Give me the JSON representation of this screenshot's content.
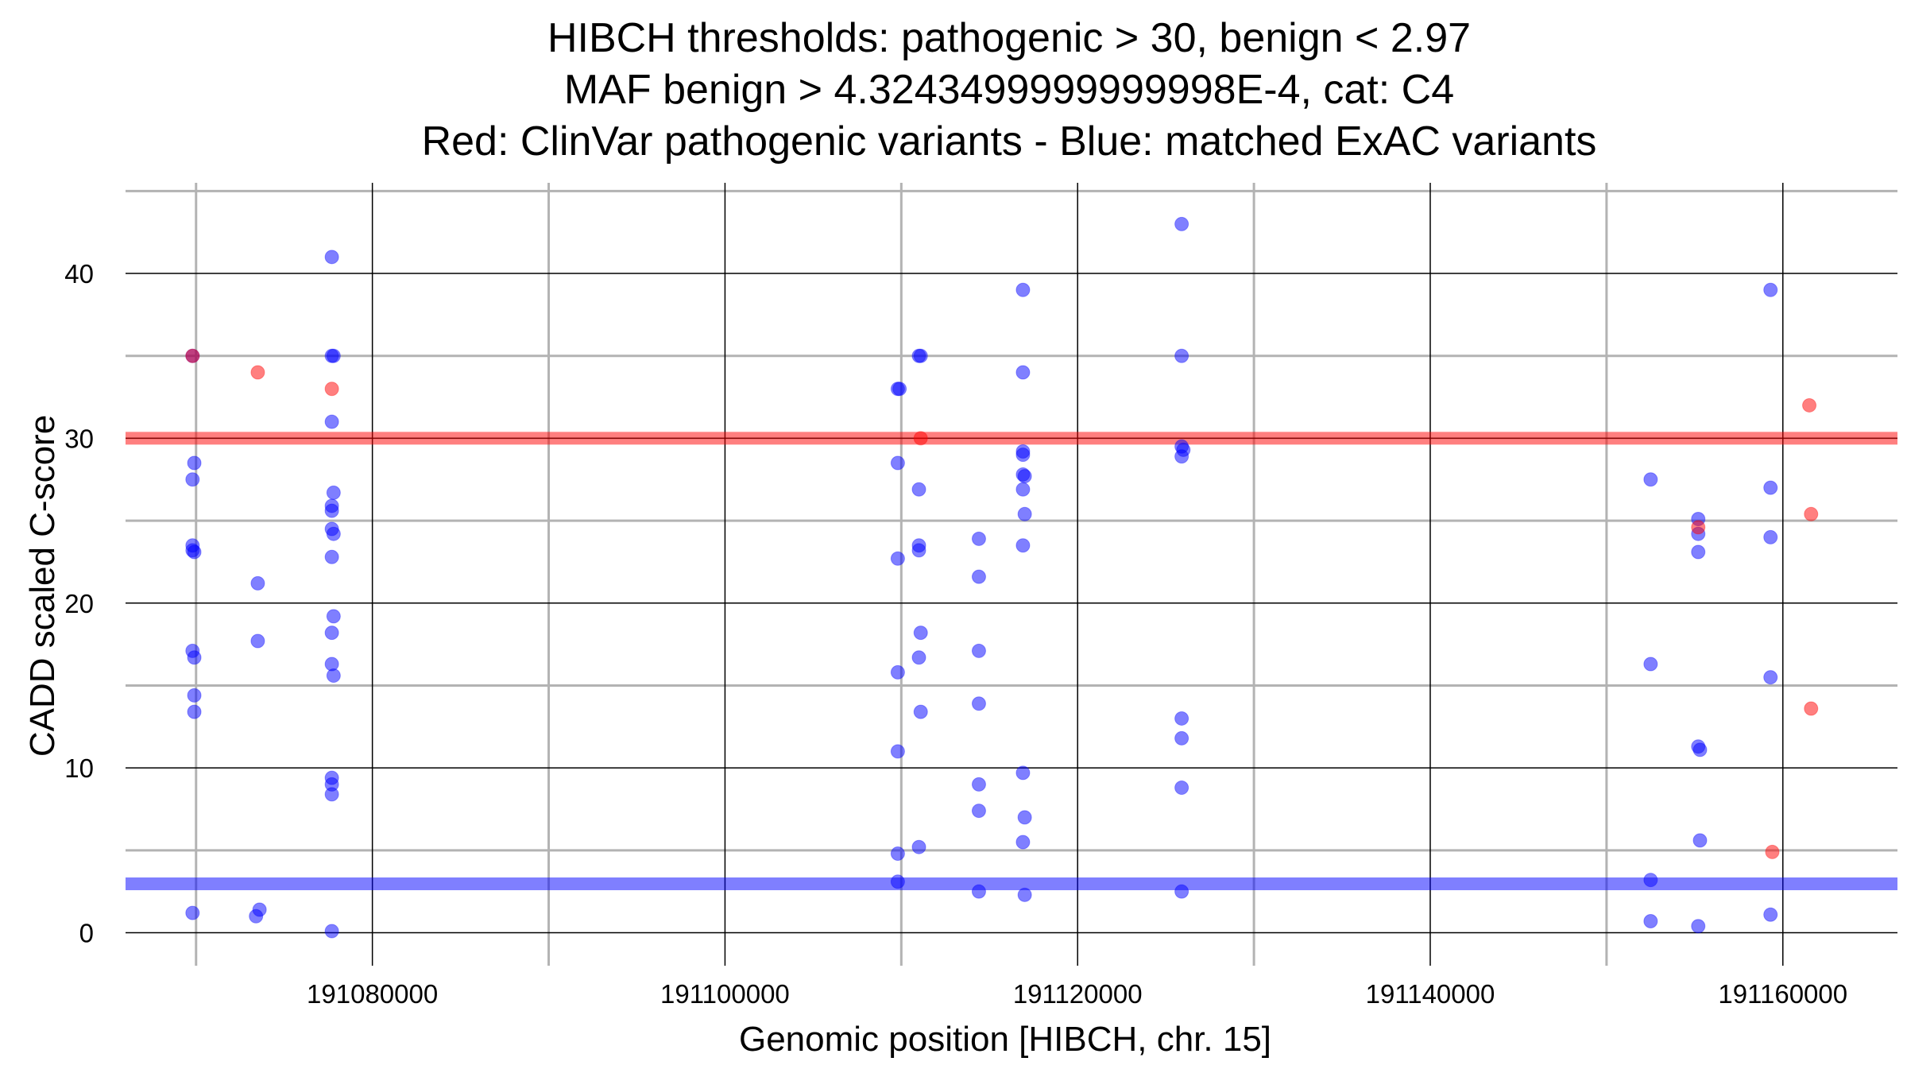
{
  "chart_data": {
    "type": "scatter",
    "title": [
      "HIBCH thresholds: pathogenic > 30, benign < 2.97",
      "MAF benign > 4.3243499999999998E-4, cat: C4",
      "Red: ClinVar pathogenic variants - Blue: matched ExAC variants"
    ],
    "xlabel": "Genomic position [HIBCH, chr. 15]",
    "ylabel": "CADD scaled C-score",
    "xlim": [
      191066000,
      191166500
    ],
    "ylim": [
      -2,
      45.5
    ],
    "x_ticks": [
      191080000,
      191100000,
      191120000,
      191140000,
      191160000
    ],
    "x_tick_labels": [
      "191080000",
      "191100000",
      "191120000",
      "191140000",
      "191160000"
    ],
    "x_minor_grid": [
      191070000,
      191090000,
      191110000,
      191130000,
      191150000
    ],
    "y_ticks": [
      0,
      10,
      20,
      30,
      40
    ],
    "y_tick_labels": [
      "0",
      "10",
      "20",
      "30",
      "40"
    ],
    "y_minor_grid": [
      5,
      15,
      25,
      35,
      45
    ],
    "thresholds": [
      {
        "name": "pathogenic",
        "value": 30,
        "color": "#ff0000"
      },
      {
        "name": "benign",
        "value": 2.97,
        "color": "#0000ff"
      }
    ],
    "colors": {
      "pathogenic": "#ff0000",
      "benign": "#0000ff"
    },
    "series": [
      {
        "name": "ClinVar pathogenic variants",
        "color": "#ff0000",
        "points": [
          [
            191069800,
            35
          ],
          [
            191073500,
            34
          ],
          [
            191077700,
            33
          ],
          [
            191111100,
            30
          ],
          [
            191155200,
            24.6
          ],
          [
            191159400,
            4.9
          ],
          [
            191161500,
            32
          ],
          [
            191161600,
            25.4
          ],
          [
            191161600,
            13.6
          ]
        ]
      },
      {
        "name": "matched ExAC variants",
        "color": "#0000ff",
        "points": [
          [
            191069800,
            35
          ],
          [
            191069900,
            28.5
          ],
          [
            191069800,
            27.5
          ],
          [
            191069800,
            23.5
          ],
          [
            191069800,
            23.2
          ],
          [
            191069900,
            23.1
          ],
          [
            191069800,
            17.1
          ],
          [
            191069900,
            16.7
          ],
          [
            191069900,
            14.4
          ],
          [
            191069900,
            13.4
          ],
          [
            191069800,
            1.2
          ],
          [
            191073500,
            21.2
          ],
          [
            191073500,
            17.7
          ],
          [
            191073600,
            1.4
          ],
          [
            191073400,
            1.0
          ],
          [
            191077700,
            41
          ],
          [
            191077700,
            35
          ],
          [
            191077800,
            35
          ],
          [
            191077700,
            31
          ],
          [
            191077800,
            26.7
          ],
          [
            191077700,
            25.9
          ],
          [
            191077700,
            25.6
          ],
          [
            191077700,
            24.5
          ],
          [
            191077800,
            24.2
          ],
          [
            191077700,
            22.8
          ],
          [
            191077800,
            19.2
          ],
          [
            191077700,
            18.2
          ],
          [
            191077700,
            16.3
          ],
          [
            191077800,
            15.6
          ],
          [
            191077700,
            9.4
          ],
          [
            191077700,
            9.0
          ],
          [
            191077700,
            8.4
          ],
          [
            191077700,
            0.1
          ],
          [
            191109800,
            33
          ],
          [
            191109900,
            33
          ],
          [
            191109800,
            28.5
          ],
          [
            191109800,
            22.7
          ],
          [
            191109800,
            15.8
          ],
          [
            191109800,
            11
          ],
          [
            191109800,
            4.8
          ],
          [
            191109800,
            3.1
          ],
          [
            191111000,
            35
          ],
          [
            191111100,
            35
          ],
          [
            191111000,
            26.9
          ],
          [
            191111000,
            23.5
          ],
          [
            191111000,
            23.2
          ],
          [
            191111100,
            18.2
          ],
          [
            191111000,
            16.7
          ],
          [
            191111100,
            13.4
          ],
          [
            191111000,
            5.2
          ],
          [
            191114400,
            23.9
          ],
          [
            191114400,
            21.6
          ],
          [
            191114400,
            17.1
          ],
          [
            191114400,
            13.9
          ],
          [
            191114400,
            9.0
          ],
          [
            191114400,
            7.4
          ],
          [
            191114400,
            2.5
          ],
          [
            191116900,
            39
          ],
          [
            191116900,
            34
          ],
          [
            191116900,
            29.2
          ],
          [
            191116900,
            29.0
          ],
          [
            191116900,
            27.8
          ],
          [
            191117000,
            27.7
          ],
          [
            191116900,
            26.9
          ],
          [
            191117000,
            25.4
          ],
          [
            191116900,
            23.5
          ],
          [
            191116900,
            9.7
          ],
          [
            191117000,
            7.0
          ],
          [
            191116900,
            5.5
          ],
          [
            191117000,
            2.3
          ],
          [
            191125900,
            43
          ],
          [
            191125900,
            35
          ],
          [
            191125900,
            29.5
          ],
          [
            191126000,
            29.3
          ],
          [
            191125900,
            28.9
          ],
          [
            191125900,
            13.0
          ],
          [
            191125900,
            11.8
          ],
          [
            191125900,
            8.8
          ],
          [
            191125900,
            2.5
          ],
          [
            191152500,
            27.5
          ],
          [
            191152500,
            16.3
          ],
          [
            191152500,
            3.2
          ],
          [
            191152500,
            0.7
          ],
          [
            191155200,
            25.1
          ],
          [
            191155200,
            24.2
          ],
          [
            191155200,
            23.1
          ],
          [
            191155200,
            11.3
          ],
          [
            191155300,
            11.1
          ],
          [
            191155300,
            5.6
          ],
          [
            191155200,
            0.4
          ],
          [
            191159300,
            39
          ],
          [
            191159300,
            27.0
          ],
          [
            191159300,
            24.0
          ],
          [
            191159300,
            15.5
          ],
          [
            191159300,
            1.1
          ]
        ]
      }
    ]
  }
}
